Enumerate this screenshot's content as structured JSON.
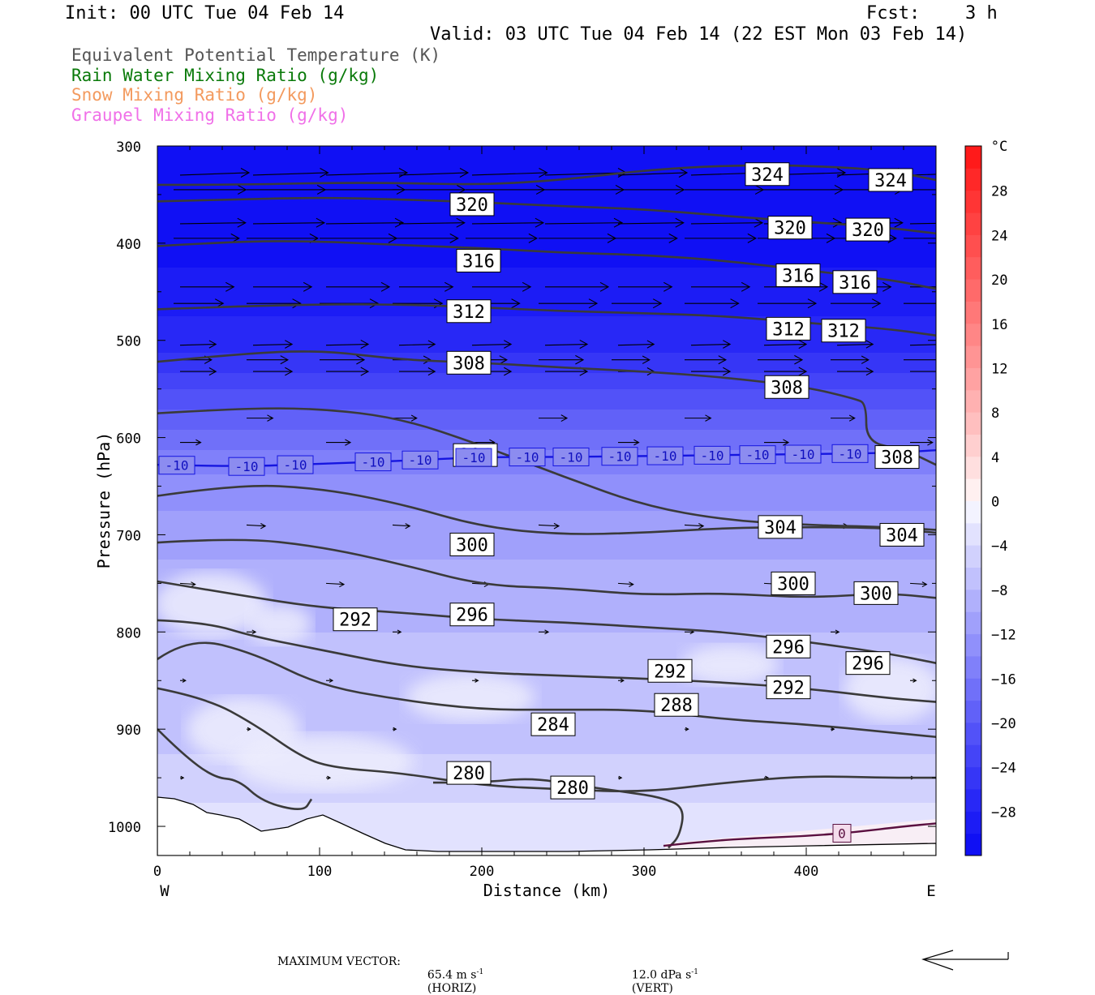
{
  "header": {
    "init": "Init: 00 UTC Tue 04 Feb 14",
    "fcst_label": "Fcst:",
    "fcst_value": "3 h",
    "valid": "Valid: 03 UTC Tue 04 Feb 14 (22 EST Mon 03 Feb 14)"
  },
  "legend": [
    {
      "text": "Equivalent Potential Temperature (K)",
      "color": "#555555"
    },
    {
      "text": "Rain Water Mixing Ratio (g/kg)",
      "color": "#0a7a0a"
    },
    {
      "text": "Snow Mixing Ratio (g/kg)",
      "color": "#f39a5e"
    },
    {
      "text": "Graupel Mixing Ratio (g/kg)",
      "color": "#f070e8"
    }
  ],
  "footer": {
    "prefix": "MAXIMUM VECTOR:",
    "horiz_value": "65.4 m s",
    "horiz_exp": "-1",
    "horiz_suffix": "(HORIZ)",
    "vert_value": "12.0 dPa s",
    "vert_exp": "-1",
    "vert_suffix": "(VERT)"
  },
  "chart_data": {
    "type": "cross-section",
    "xlabel": "Distance (km)",
    "ylabel": "Pressure (hPa)",
    "xlim": [
      0,
      480
    ],
    "ylim": [
      1030,
      300
    ],
    "x_ticks": [
      0,
      100,
      200,
      300,
      400
    ],
    "y_ticks": [
      300,
      400,
      500,
      600,
      700,
      800,
      900,
      1000
    ],
    "x_left_label": "W",
    "x_right_label": "E",
    "colorbar": {
      "unit": "°C",
      "labels": [
        28,
        24,
        20,
        16,
        12,
        8,
        4,
        0,
        -4,
        -8,
        -12,
        -16,
        -20,
        -24,
        -28
      ],
      "levels": [
        -32,
        -30,
        -28,
        -26,
        -24,
        -22,
        -20,
        -18,
        -16,
        -14,
        -12,
        -10,
        -8,
        -6,
        -4,
        -2,
        0,
        2,
        4,
        6,
        8,
        10,
        12,
        14,
        16,
        18,
        20,
        22,
        24,
        26,
        28,
        30,
        32
      ]
    },
    "temperature_profile": {
      "pressure": [
        300,
        400,
        500,
        600,
        650,
        700,
        750,
        800,
        850,
        900,
        950,
        1000
      ],
      "temp_c": [
        -32,
        -31,
        -27,
        -17,
        -13,
        -11,
        -9,
        -8,
        -8,
        -7,
        -5,
        -3
      ]
    },
    "isotherm_minus10": {
      "label": "-10",
      "x": [
        0,
        50,
        100,
        150,
        200,
        250,
        300,
        350,
        400,
        450,
        480
      ],
      "p": [
        628,
        630,
        627,
        624,
        620,
        620,
        619,
        618,
        617,
        616,
        613
      ],
      "label_x": [
        12,
        55,
        85,
        133,
        162,
        195,
        228,
        255,
        285,
        313,
        342,
        370,
        398,
        427
      ]
    },
    "isotherm_zero": {
      "label": "0",
      "x": [
        312,
        340,
        370,
        400,
        430,
        460,
        480
      ],
      "p": [
        1020,
        1015,
        1012,
        1010,
        1006,
        1000,
        997
      ],
      "label_x": 422
    },
    "theta_e": [
      {
        "value": 280,
        "x": [
          0,
          15,
          35,
          50,
          65,
          90,
          95
        ],
        "p": [
          900,
          925,
          950,
          952,
          975,
          985,
          972
        ],
        "labels": [
          [
            192,
            945
          ],
          [
            256,
            960
          ]
        ]
      },
      {
        "value": 280,
        "x": [
          170,
          200,
          230,
          260,
          290,
          310,
          325,
          322,
          315
        ],
        "p": [
          955,
          955,
          950,
          958,
          965,
          970,
          980,
          1010,
          1022
        ],
        "labels": []
      },
      {
        "value": 284,
        "x": [
          0,
          30,
          60,
          90,
          110,
          150,
          200,
          250,
          300,
          350,
          400,
          450,
          480
        ],
        "p": [
          858,
          868,
          895,
          930,
          940,
          945,
          958,
          962,
          965,
          955,
          948,
          950,
          950
        ],
        "labels": [
          [
            244,
            895
          ]
        ]
      },
      {
        "value": 288,
        "x": [
          0,
          20,
          60,
          100,
          150,
          200,
          250,
          300,
          350,
          400,
          450,
          480
        ],
        "p": [
          828,
          805,
          822,
          855,
          870,
          880,
          880,
          880,
          890,
          895,
          903,
          908
        ],
        "labels": [
          [
            320,
            875
          ]
        ]
      },
      {
        "value": 292,
        "x": [
          0,
          30,
          60,
          100,
          150,
          200,
          250,
          300,
          350,
          400,
          450,
          480
        ],
        "p": [
          788,
          790,
          805,
          818,
          835,
          842,
          845,
          848,
          852,
          858,
          868,
          872
        ],
        "labels": [
          [
            122,
            787
          ],
          [
            316,
            840
          ],
          [
            389,
            857
          ]
        ]
      },
      {
        "value": 296,
        "x": [
          0,
          50,
          100,
          150,
          200,
          250,
          300,
          350,
          400,
          450,
          480
        ],
        "p": [
          748,
          762,
          775,
          780,
          787,
          790,
          795,
          800,
          810,
          822,
          832
        ],
        "labels": [
          [
            194,
            782
          ],
          [
            389,
            815
          ],
          [
            438,
            832
          ]
        ]
      },
      {
        "value": 300,
        "x": [
          0,
          50,
          100,
          150,
          200,
          250,
          300,
          350,
          400,
          450,
          480
        ],
        "p": [
          708,
          703,
          712,
          730,
          752,
          755,
          762,
          760,
          765,
          760,
          765
        ],
        "labels": [
          [
            194,
            710
          ],
          [
            392,
            750
          ],
          [
            443,
            760
          ]
        ]
      },
      {
        "value": 304,
        "x": [
          0,
          50,
          100,
          150,
          200,
          250,
          300,
          350,
          400,
          450,
          480
        ],
        "p": [
          660,
          648,
          652,
          668,
          692,
          700,
          698,
          693,
          692,
          693,
          698
        ],
        "labels": [
          [
            384,
            692
          ],
          [
            459,
            700
          ]
        ]
      },
      {
        "value": 304,
        "x": [
          0,
          50,
          100,
          150,
          200,
          250,
          300,
          350,
          400,
          450,
          480
        ],
        "p": [
          575,
          570,
          570,
          580,
          608,
          640,
          670,
          685,
          690,
          692,
          695
        ],
        "labels": [
          [
            196,
            618
          ]
        ]
      },
      {
        "value": 308,
        "x": [
          0,
          50,
          100,
          150,
          200,
          250,
          300,
          350,
          400,
          430,
          437,
          437,
          460,
          480
        ],
        "p": [
          522,
          514,
          510,
          520,
          523,
          528,
          532,
          538,
          548,
          560,
          565,
          605,
          612,
          628
        ],
        "labels": [
          [
            192,
            523
          ],
          [
            388,
            548
          ],
          [
            456,
            620
          ]
        ]
      },
      {
        "value": 312,
        "x": [
          0,
          50,
          100,
          150,
          200,
          250,
          300,
          350,
          400,
          450,
          480
        ],
        "p": [
          468,
          465,
          463,
          463,
          466,
          470,
          472,
          475,
          482,
          488,
          495
        ],
        "labels": [
          [
            192,
            470
          ],
          [
            389,
            488
          ],
          [
            423,
            490
          ]
        ]
      },
      {
        "value": 316,
        "x": [
          0,
          50,
          100,
          150,
          200,
          250,
          300,
          350,
          400,
          450,
          480
        ],
        "p": [
          403,
          398,
          398,
          402,
          405,
          410,
          412,
          418,
          428,
          437,
          447
        ],
        "labels": [
          [
            198,
            418
          ],
          [
            395,
            433
          ],
          [
            430,
            440
          ]
        ]
      },
      {
        "value": 320,
        "x": [
          0,
          50,
          100,
          150,
          200,
          250,
          300,
          350,
          400,
          450,
          480
        ],
        "p": [
          357,
          355,
          353,
          355,
          358,
          362,
          365,
          372,
          378,
          384,
          390
        ],
        "labels": [
          [
            194,
            360
          ],
          [
            390,
            384
          ],
          [
            438,
            386
          ]
        ]
      },
      {
        "value": 324,
        "x": [
          0,
          50,
          100,
          150,
          200,
          250,
          300,
          350,
          400,
          450,
          480
        ],
        "p": [
          340,
          340,
          338,
          338,
          340,
          335,
          325,
          320,
          320,
          325,
          335
        ],
        "labels": [
          [
            376,
            329
          ],
          [
            452,
            335
          ]
        ]
      }
    ]
  }
}
